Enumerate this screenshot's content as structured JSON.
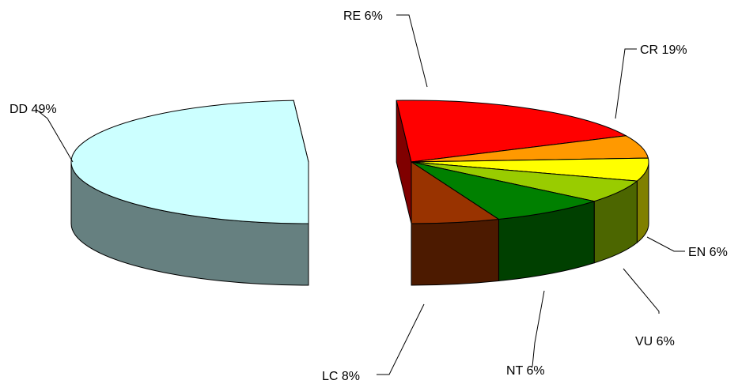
{
  "chart_data": {
    "type": "pie",
    "style": "3d-exploded",
    "unit": "%",
    "legend": "none",
    "slices": [
      {
        "label": "DD",
        "value": 49,
        "text": "DD 49%",
        "color": "#ccffff",
        "side_color": "#668080"
      },
      {
        "label": "CR",
        "value": 19,
        "text": "CR 19%",
        "color": "#ff0000",
        "side_color": "#800000"
      },
      {
        "label": "EN",
        "value": 6,
        "text": "EN 6%",
        "color": "#ff9900",
        "side_color": "#804c00"
      },
      {
        "label": "VU",
        "value": 6,
        "text": "VU 6%",
        "color": "#ffff00",
        "side_color": "#808000"
      },
      {
        "label": "NT",
        "value": 6,
        "text": "NT 6%",
        "color": "#99cc00",
        "side_color": "#4c6600"
      },
      {
        "label": "LC",
        "value": 8,
        "text": "LC 8%",
        "color": "#008000",
        "side_color": "#004000"
      },
      {
        "label": "RE",
        "value": 6,
        "text": "RE 6%",
        "color": "#993300",
        "side_color": "#4c1a00"
      }
    ]
  }
}
